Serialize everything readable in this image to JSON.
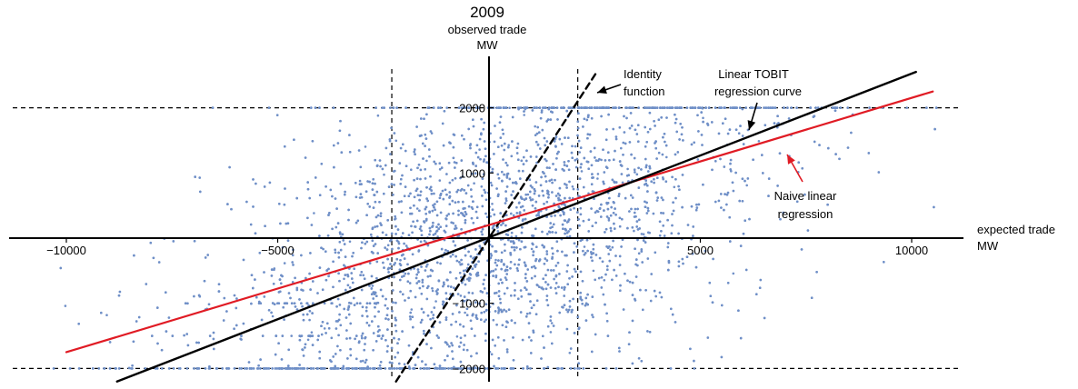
{
  "chart_data": {
    "type": "scatter",
    "title": "2009",
    "ylabel_lines": [
      "observed trade",
      "MW"
    ],
    "xlabel_lines": [
      "expected trade",
      "MW"
    ],
    "xlim": [
      -10500,
      11000
    ],
    "ylim": [
      -2200,
      2550
    ],
    "x_ticks": [
      -10000,
      -5000,
      5000,
      10000
    ],
    "x_tick_labels": [
      "−10000",
      "−5000",
      "5000",
      "10000"
    ],
    "y_ticks": [
      -2000,
      -1000,
      1000,
      2000
    ],
    "y_tick_labels": [
      "−2000",
      "−1000",
      "1000",
      "2000"
    ],
    "reference_lines": {
      "horizontal": [
        2000,
        -2000
      ],
      "vertical": [
        -2300,
        2100
      ]
    },
    "colors": {
      "points": "#6f8fc7",
      "tobit": "#000000",
      "naive": "#e01b24",
      "identity": "#000000"
    },
    "series": [
      {
        "name": "Identity function",
        "kind": "line",
        "style": "dashed",
        "points": [
          [
            -2200,
            -2200
          ],
          [
            2550,
            2550
          ]
        ]
      },
      {
        "name": "Linear TOBIT regression curve",
        "kind": "line",
        "points": [
          [
            -9000,
            -2250
          ],
          [
            10500,
            2650
          ]
        ]
      },
      {
        "name": "Naive linear regression",
        "kind": "line",
        "points": [
          [
            -10000,
            -1750
          ],
          [
            10500,
            2250
          ]
        ]
      }
    ],
    "annotations": [
      {
        "lines": [
          "Identity",
          "function"
        ],
        "for": "Identity function"
      },
      {
        "lines": [
          "Linear TOBIT",
          "regression curve"
        ],
        "for": "Linear TOBIT regression curve"
      },
      {
        "lines": [
          "Naive linear",
          "regression"
        ],
        "for": "Naive linear regression"
      }
    ],
    "scatter": {
      "name": "observations",
      "n_points": 5200,
      "censored_at": [
        2000,
        -2000
      ],
      "clustered_levels": [
        -1000,
        -1500
      ]
    }
  }
}
